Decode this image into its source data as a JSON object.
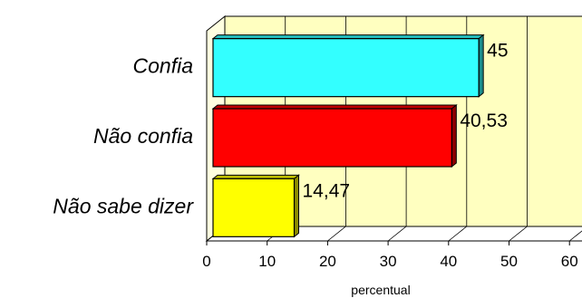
{
  "chart_data": {
    "type": "bar",
    "orientation": "horizontal",
    "style": "3d",
    "categories": [
      "Confia",
      "Não confia",
      "Não sabe dizer"
    ],
    "values": [
      45,
      40.53,
      14.47
    ],
    "data_labels": [
      "45",
      "40,53",
      "14,47"
    ],
    "colors": [
      "#33ffff",
      "#ff0000",
      "#ffff00"
    ],
    "xlabel": "percentual",
    "xlim": [
      0,
      60
    ],
    "xticks": [
      0,
      10,
      20,
      30,
      40,
      50,
      60
    ],
    "tick_labels": [
      "0",
      "10",
      "20",
      "30",
      "40",
      "50",
      "60"
    ],
    "grid": true,
    "plot_background": "#ffffc0",
    "legend": "none"
  }
}
